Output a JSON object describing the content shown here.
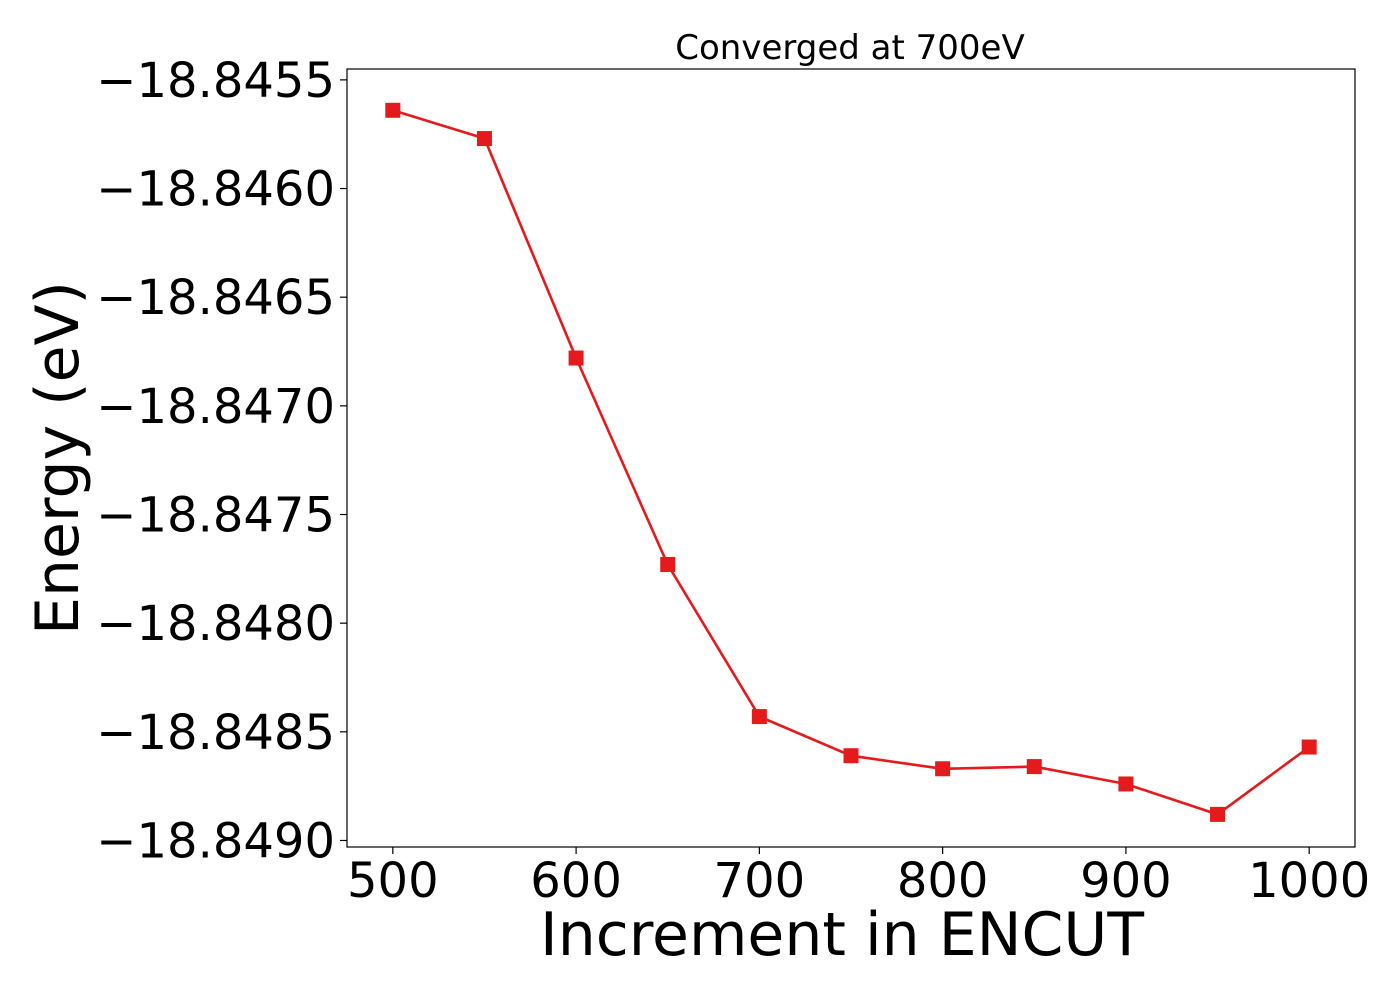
{
  "chart_data": {
    "type": "line",
    "title": "Converged at 700eV",
    "xlabel": "Increment in ENCUT",
    "ylabel": "Energy (eV)",
    "x": [
      500,
      550,
      600,
      650,
      700,
      750,
      800,
      850,
      900,
      950,
      1000
    ],
    "series": [
      {
        "values": [
          -18.84564,
          -18.84577,
          -18.84678,
          -18.84773,
          -18.84843,
          -18.84861,
          -18.84867,
          -18.84866,
          -18.84874,
          -18.84888,
          -18.84857
        ],
        "color": "#e41a1c",
        "marker": "square"
      }
    ],
    "xlim": [
      475,
      1025
    ],
    "ylim": [
      -18.84903,
      -18.84545
    ],
    "xticks": [
      500,
      600,
      700,
      800,
      900,
      1000
    ],
    "xtick_labels": [
      "500",
      "600",
      "700",
      "800",
      "900",
      "1000"
    ],
    "yticks": [
      -18.8455,
      -18.846,
      -18.8465,
      -18.847,
      -18.8475,
      -18.848,
      -18.8485,
      -18.849
    ],
    "ytick_labels": [
      "−18.8455",
      "−18.8460",
      "−18.8465",
      "−18.8470",
      "−18.8475",
      "−18.8480",
      "−18.8485",
      "−18.8490"
    ],
    "grid": false,
    "legend": false
  }
}
